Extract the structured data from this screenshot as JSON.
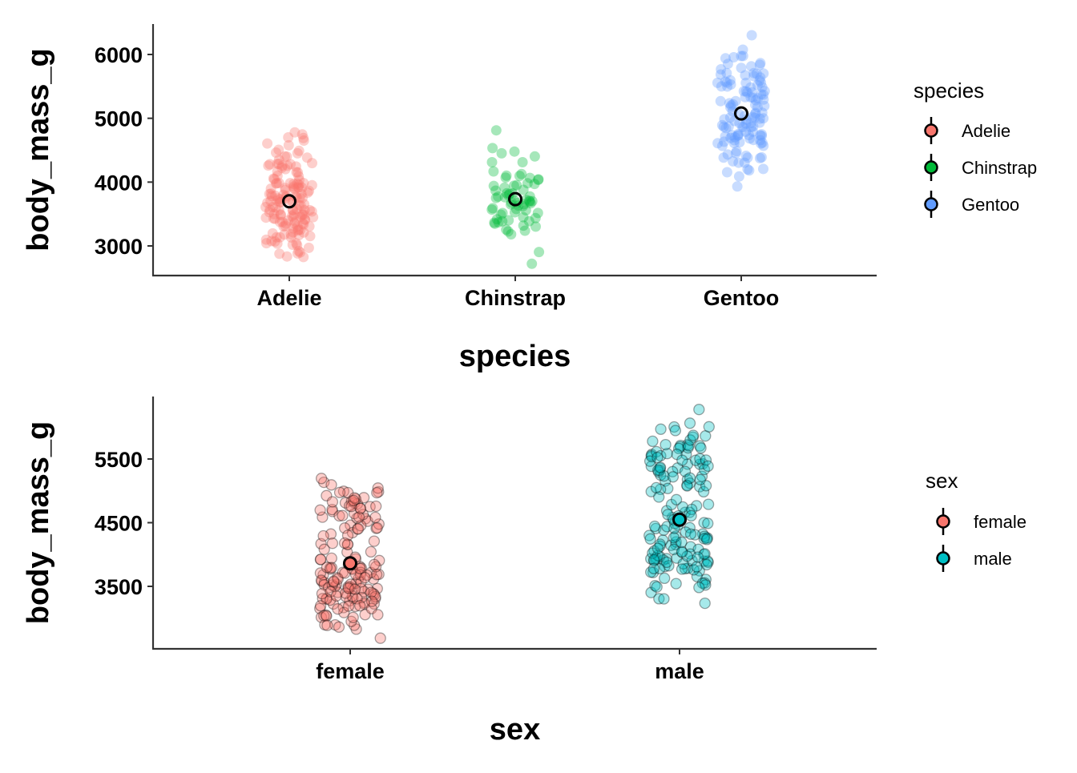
{
  "chart_data": [
    {
      "type": "scatter",
      "subtype": "jitter-with-mean",
      "xlabel": "species",
      "ylabel": "body_mass_g",
      "categories": [
        "Adelie",
        "Chinstrap",
        "Gentoo"
      ],
      "yticks": [
        3000,
        4000,
        5000,
        6000
      ],
      "ylim": [
        2550,
        6480
      ],
      "grid": false,
      "legend": {
        "title": "species",
        "position": "right",
        "entries": [
          "Adelie",
          "Chinstrap",
          "Gentoo"
        ]
      },
      "series": [
        {
          "name": "Adelie",
          "color": "#F8766D",
          "mean": 3700,
          "count": 146,
          "min": 2850,
          "max": 4775,
          "points": [
            3750,
            3800,
            3250,
            3450,
            3650,
            3625,
            4675,
            3200,
            3800,
            4400,
            3700,
            3450,
            4500,
            3325,
            4200,
            3400,
            3600,
            3800,
            3950,
            3800,
            3800,
            3550,
            3200,
            3150,
            3950,
            3250,
            3900,
            3300,
            3900,
            3325,
            4150,
            3950,
            3550,
            3300,
            4650,
            3150,
            3900,
            3100,
            4400,
            3000,
            4600,
            3425,
            2975,
            3450,
            4150,
            3500,
            4300,
            3450,
            4050,
            2900,
            3700,
            3550,
            3800,
            2850,
            3750,
            3150,
            4400,
            3600,
            4050,
            2850,
            3950,
            3350,
            4100,
            3050,
            4450,
            3600,
            3900,
            3550,
            4150,
            3700,
            4250,
            3700,
            3900,
            3550,
            4000,
            3200,
            4700,
            3800,
            4200,
            3350,
            3550,
            3800,
            3500,
            3950,
            3600,
            3550,
            4300,
            3400,
            4450,
            3300,
            4300,
            3700,
            4350,
            2900,
            4100,
            3725,
            4725,
            3075,
            4250,
            2925,
            3550,
            3750,
            3900,
            3175,
            4775,
            3825,
            4600,
            3200,
            4275,
            3900,
            4075,
            2900,
            3775,
            3350,
            3325,
            3150,
            3500,
            3450,
            3875,
            3050,
            4000,
            3275,
            4300,
            3050,
            4000,
            3325,
            3500,
            3500,
            4475,
            3425,
            3900,
            3175,
            3975,
            3400,
            4250,
            3400,
            3475,
            3050,
            3725,
            3000,
            3650,
            4250,
            3475,
            3450,
            3750,
            3700,
            4000
          ]
        },
        {
          "name": "Chinstrap",
          "color": "#00BA38",
          "mean": 3733,
          "count": 68,
          "min": 2700,
          "max": 4800,
          "points": [
            3500,
            3900,
            3650,
            3525,
            3725,
            3950,
            3250,
            3750,
            4150,
            3700,
            3800,
            3775,
            3700,
            4050,
            3575,
            4050,
            3300,
            3700,
            3450,
            4400,
            3600,
            3400,
            2900,
            3800,
            3300,
            4150,
            3400,
            3800,
            3700,
            4550,
            3200,
            4300,
            3350,
            4100,
            3600,
            3900,
            3850,
            4800,
            2700,
            4500,
            3950,
            3650,
            3550,
            3500,
            3675,
            4450,
            3400,
            4300,
            3250,
            3675,
            3325,
            3950,
            3600,
            4050,
            3350,
            3450,
            3250,
            4050,
            3800,
            3525,
            3950,
            3650,
            3650,
            4000,
            3400,
            3775,
            4100,
            3775
          ]
        },
        {
          "name": "Gentoo",
          "color": "#619CFF",
          "mean": 5076,
          "count": 123,
          "min": 3950,
          "max": 6300,
          "points": [
            4500,
            5700,
            4450,
            5700,
            5400,
            4550,
            4800,
            5200,
            4400,
            5150,
            4650,
            5550,
            4650,
            5850,
            4200,
            5850,
            4150,
            6300,
            4800,
            5350,
            5700,
            5000,
            4400,
            5050,
            5000,
            5100,
            4100,
            5650,
            4600,
            5550,
            5250,
            4700,
            5050,
            6050,
            5150,
            5400,
            4950,
            5250,
            4350,
            5350,
            3950,
            5700,
            4300,
            4750,
            5550,
            4900,
            4200,
            5400,
            5100,
            5300,
            4850,
            5300,
            4400,
            5000,
            4900,
            5050,
            4300,
            5000,
            4450,
            5550,
            4200,
            5300,
            4400,
            5650,
            4700,
            5700,
            4650,
            5800,
            4700,
            5550,
            4750,
            5000,
            5100,
            5200,
            4700,
            5800,
            4600,
            6000,
            4750,
            5950,
            4625,
            5450,
            4725,
            5350,
            4750,
            5600,
            4600,
            5300,
            4875,
            5550,
            4950,
            5400,
            4750,
            5650,
            4850,
            5200,
            4925,
            4875,
            4625,
            5250,
            4850,
            5600,
            4975,
            5500,
            4725,
            5500,
            4700,
            5500,
            4575,
            5500,
            5000,
            5950,
            4650,
            5500,
            4375,
            5850,
            4875,
            6000,
            4925,
            4850,
            5750,
            5200,
            5400
          ]
        }
      ]
    },
    {
      "type": "scatter",
      "subtype": "jitter-with-mean",
      "xlabel": "sex",
      "ylabel": "body_mass_g",
      "categories": [
        "female",
        "male"
      ],
      "yticks": [
        3500,
        4500,
        5500
      ],
      "ylim": [
        2550,
        6500
      ],
      "grid": false,
      "legend": {
        "title": "sex",
        "position": "right",
        "entries": [
          "female",
          "male"
        ]
      },
      "series": [
        {
          "name": "female",
          "color": "#F8766D",
          "mean": 3862,
          "count": 165,
          "min": 2700,
          "max": 5200,
          "points": [
            3800,
            3250,
            3450,
            3625,
            3200,
            3700,
            3450,
            3325,
            3400,
            3800,
            3800,
            3200,
            3150,
            3250,
            3300,
            3325,
            3550,
            3300,
            3150,
            3100,
            3000,
            3450,
            3500,
            3450,
            2900,
            3550,
            2850,
            3150,
            3600,
            2850,
            3350,
            3050,
            3600,
            3550,
            3700,
            3700,
            3550,
            3200,
            3800,
            3350,
            3500,
            3600,
            3550,
            3400,
            3300,
            3700,
            2900,
            3725,
            3075,
            2925,
            3750,
            3175,
            3825,
            3200,
            3900,
            2900,
            3350,
            3150,
            3450,
            3050,
            3275,
            3050,
            3325,
            3500,
            3425,
            3175,
            3400,
            3400,
            3050,
            3000,
            3475,
            3450,
            3700,
            3500,
            3900,
            3650,
            3525,
            3725,
            3950,
            3250,
            3750,
            4150,
            3700,
            3800,
            3775,
            3700,
            4050,
            3575,
            4050,
            3300,
            3700,
            3450,
            4400,
            3600,
            3400,
            2900,
            3800,
            3300,
            4150,
            3400,
            3800,
            3700,
            4550,
            3200,
            4300,
            3350,
            4100,
            3600,
            3900,
            3850,
            4800,
            2700,
            4500,
            3950,
            3650,
            4500,
            4450,
            4550,
            4800,
            4400,
            4650,
            4650,
            4200,
            4150,
            4800,
            5000,
            4400,
            5000,
            4600,
            4700,
            5050,
            5150,
            4950,
            4350,
            3950,
            4300,
            4900,
            4200,
            5100,
            4850,
            4400,
            4900,
            4300,
            4450,
            4200,
            4400,
            4700,
            4700,
            4750,
            5200,
            4700,
            4600,
            4750,
            4625,
            4725,
            4750,
            4600,
            4875,
            4950,
            4750,
            4850,
            4875,
            4625,
            4850,
            4975
          ]
        },
        {
          "name": "male",
          "color": "#00BFC4",
          "mean": 4546,
          "count": 168,
          "min": 3250,
          "max": 6300,
          "points": [
            3750,
            3650,
            4675,
            3800,
            4400,
            4500,
            4200,
            3600,
            3950,
            3800,
            3550,
            3950,
            3900,
            3900,
            4150,
            3950,
            4650,
            3900,
            4400,
            4600,
            3425,
            4150,
            4300,
            4050,
            3700,
            3800,
            3750,
            4400,
            4050,
            3950,
            4100,
            4450,
            3900,
            4150,
            4250,
            3900,
            4000,
            4700,
            4200,
            3550,
            3800,
            3950,
            4300,
            4450,
            4300,
            4350,
            4100,
            4725,
            4250,
            3550,
            3900,
            4775,
            4600,
            4275,
            4075,
            3775,
            3325,
            3500,
            3875,
            4000,
            4300,
            4000,
            3500,
            4475,
            3900,
            3975,
            4250,
            3475,
            3725,
            3650,
            4250,
            3750,
            4000,
            3900,
            4500,
            3500,
            4250,
            3250,
            3950,
            3300,
            3850,
            4300,
            3800,
            4050,
            3900,
            4150,
            4550,
            4300,
            4100,
            4200,
            3800,
            3950,
            5700,
            5700,
            5400,
            5200,
            5150,
            5550,
            5850,
            5850,
            6300,
            5350,
            5700,
            5050,
            5100,
            5650,
            5550,
            5250,
            6050,
            5400,
            5250,
            5350,
            5700,
            4750,
            5550,
            5400,
            5300,
            5300,
            5000,
            5050,
            5000,
            5550,
            5300,
            5650,
            5700,
            5800,
            5550,
            5000,
            5100,
            5800,
            6000,
            5950,
            5450,
            5350,
            5600,
            5300,
            5550,
            5400,
            5650,
            5200,
            5250,
            5600,
            5500,
            5500,
            5500,
            5500,
            5950,
            5500,
            5850,
            6000,
            5750,
            5400,
            4800,
            4700,
            4650,
            5050,
            4900,
            4850,
            5100,
            4600,
            5300,
            4450,
            4550,
            5200,
            4400,
            5100,
            5350,
            5200
          ]
        }
      ]
    }
  ]
}
